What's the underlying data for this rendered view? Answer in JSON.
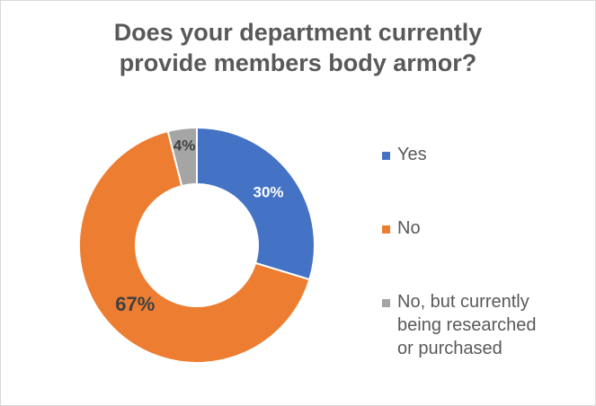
{
  "chart_data": {
    "type": "pie",
    "variant": "donut",
    "title_lines": [
      "Does your department currently",
      "provide members body armor?"
    ],
    "categories": [
      "Yes",
      "No",
      "No, but currently being researched or purchased"
    ],
    "legend_lines": [
      [
        "Yes"
      ],
      [
        "No"
      ],
      [
        "No, but currently",
        "being researched",
        "or purchased"
      ]
    ],
    "values": [
      30,
      67,
      4
    ],
    "data_labels": [
      "30%",
      "67%",
      "4%"
    ],
    "colors": [
      "#4472c4",
      "#ed7d31",
      "#a5a5a5"
    ],
    "label_colors": [
      "#ffffff",
      "#404040",
      "#404040"
    ],
    "legend_position": "right"
  }
}
